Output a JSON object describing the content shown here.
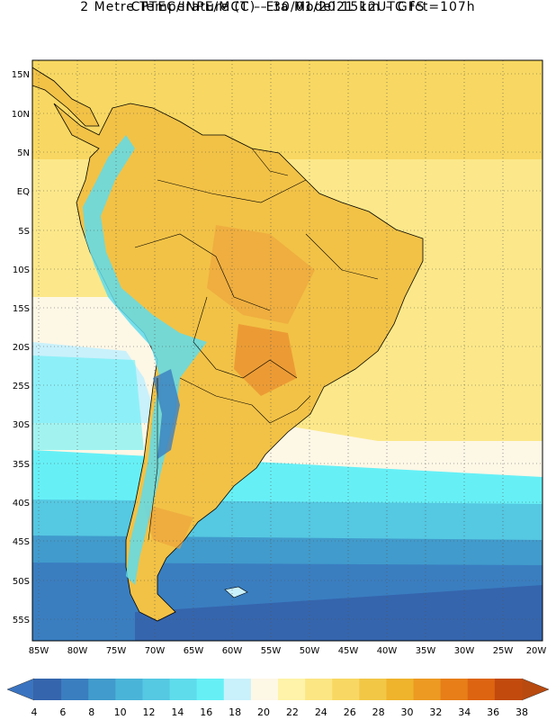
{
  "header": {
    "line1": "CPTEC/INPE/MCT –  Eta Model 15km – GFS",
    "line2": "2 Metre Temperature (C) – 30/01/2021 12UTC fct=107h"
  },
  "lat_labels": [
    "15N",
    "10N",
    "5N",
    "EQ",
    "5S",
    "10S",
    "15S",
    "20S",
    "25S",
    "30S",
    "35S",
    "40S",
    "45S",
    "50S",
    "55S"
  ],
  "lon_labels": [
    "85W",
    "80W",
    "75W",
    "70W",
    "65W",
    "60W",
    "55W",
    "50W",
    "45W",
    "40W",
    "35W",
    "30W",
    "25W",
    "20W"
  ],
  "colorbar": {
    "labels": [
      "4",
      "6",
      "8",
      "10",
      "12",
      "14",
      "16",
      "18",
      "20",
      "22",
      "24",
      "26",
      "28",
      "30",
      "32",
      "34",
      "36",
      "38"
    ],
    "below_color": "#3a74c0",
    "above_color": "#b84a10",
    "colors": [
      "#3565ad",
      "#3a7ec0",
      "#419bcc",
      "#4ab4d8",
      "#55c8e2",
      "#5fdcec",
      "#66f0f6",
      "#c9f1fb",
      "#fdf7e6",
      "#fef3a8",
      "#fce684",
      "#f8d862",
      "#f2c746",
      "#efb32c",
      "#ec9a22",
      "#e77e18",
      "#dd6410",
      "#c24a0c"
    ]
  },
  "colors": {
    "land_warm": "#f2c246",
    "land_hot": "#ec9e3a",
    "ocean_cool": "#5fdcec",
    "ocean_deep": "#3565ad"
  }
}
